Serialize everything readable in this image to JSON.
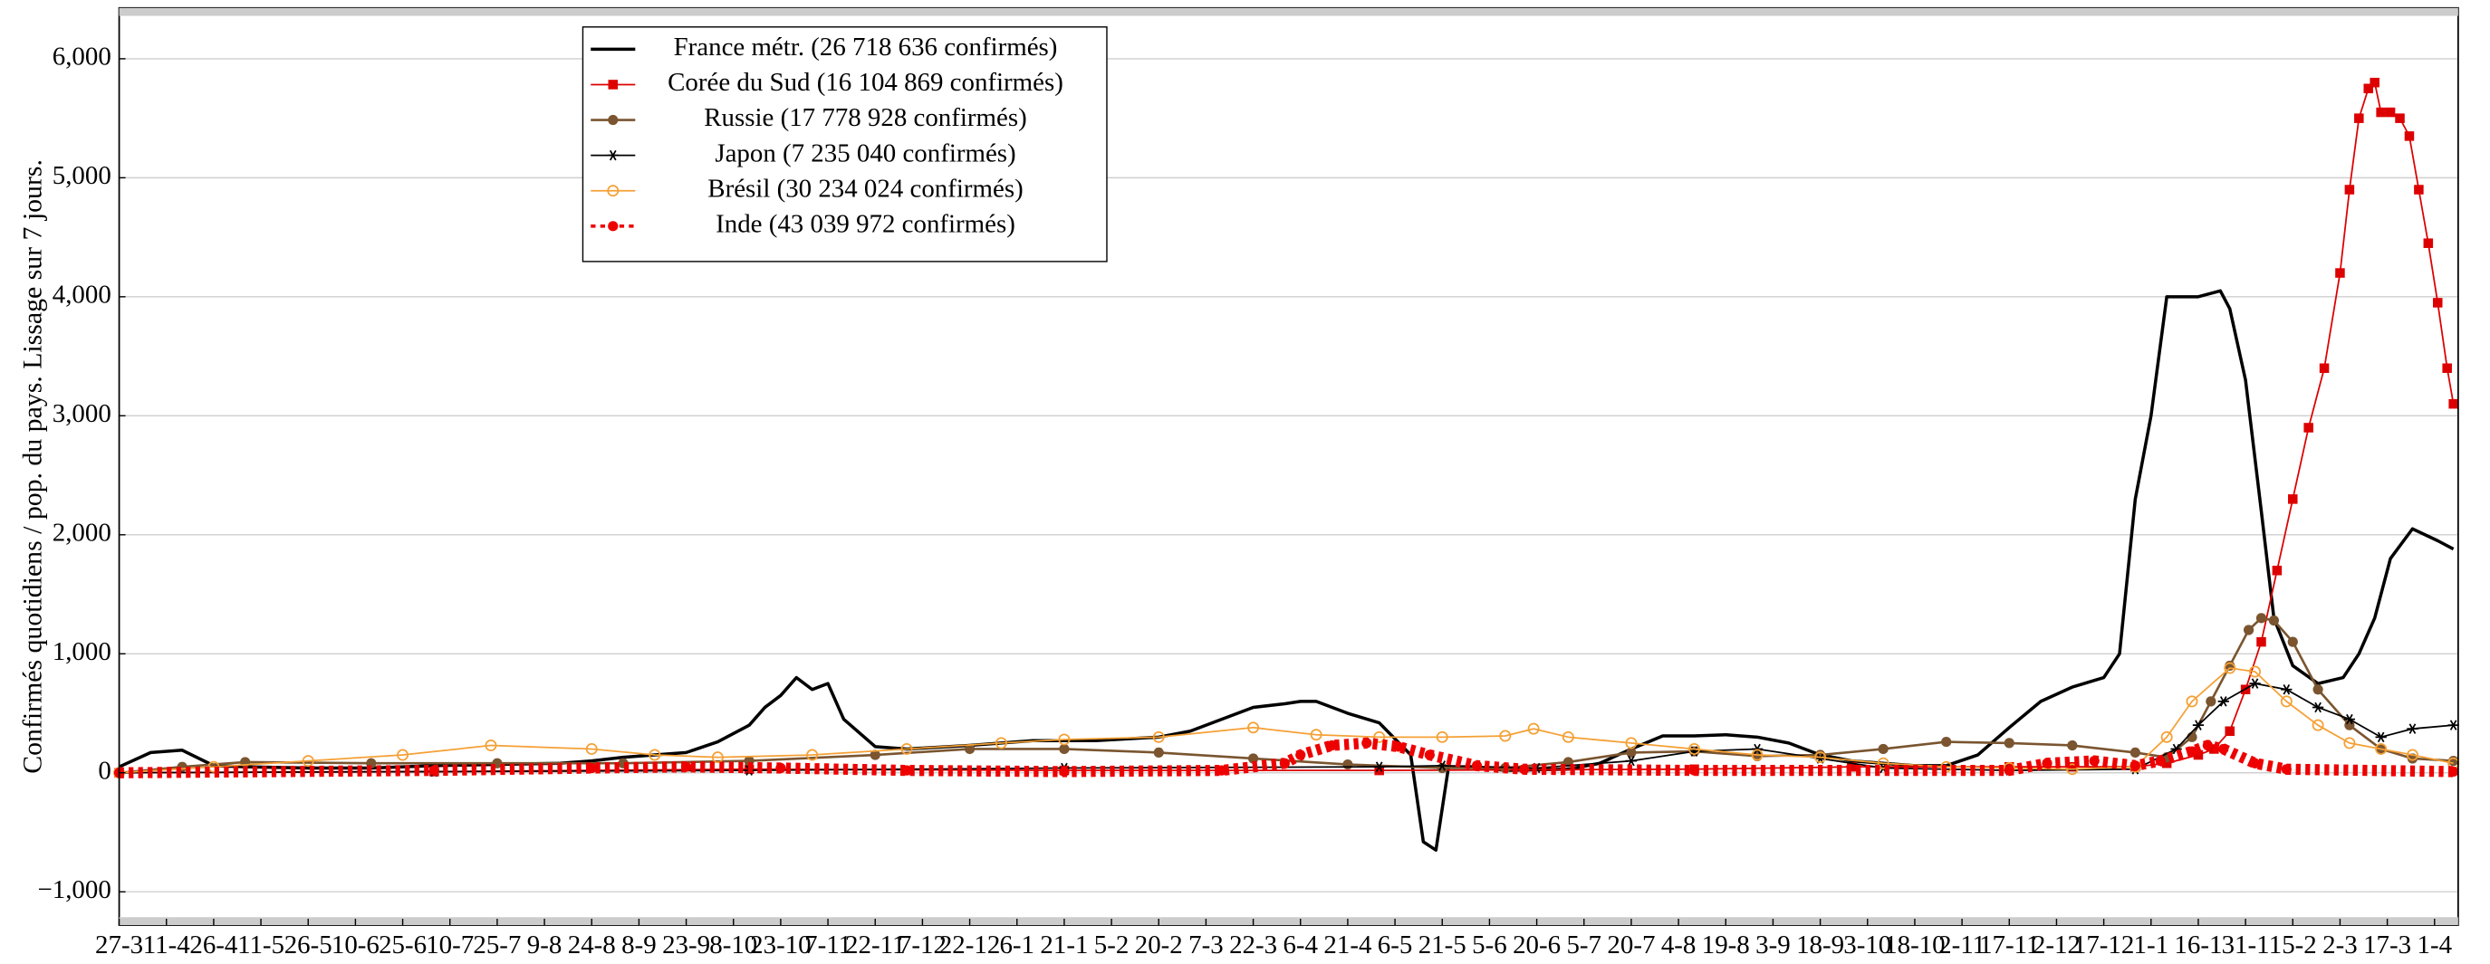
{
  "chart_data": {
    "type": "line",
    "y_label": "Confirmés quotidiens / pop. du pays. Lissage sur 7 jours.",
    "xlim": [
      0,
      742.5
    ],
    "ylim": [
      -1280,
      6427
    ],
    "grid": "y",
    "legend": "upper left",
    "xticks": [
      {
        "value": 0,
        "label": "27-3"
      },
      {
        "value": 15,
        "label": "11-4"
      },
      {
        "value": 30,
        "label": "26-4"
      },
      {
        "value": 45,
        "label": "11-5"
      },
      {
        "value": 60,
        "label": "26-5"
      },
      {
        "value": 75,
        "label": "10-6"
      },
      {
        "value": 90,
        "label": "25-6"
      },
      {
        "value": 105,
        "label": "10-7"
      },
      {
        "value": 120,
        "label": "25-7"
      },
      {
        "value": 135,
        "label": "9-8"
      },
      {
        "value": 150,
        "label": "24-8"
      },
      {
        "value": 165,
        "label": "8-9"
      },
      {
        "value": 180,
        "label": "23-9"
      },
      {
        "value": 195,
        "label": "8-10"
      },
      {
        "value": 210,
        "label": "23-10"
      },
      {
        "value": 225,
        "label": "7-11"
      },
      {
        "value": 240,
        "label": "22-11"
      },
      {
        "value": 255,
        "label": "7-12"
      },
      {
        "value": 270,
        "label": "22-12"
      },
      {
        "value": 285,
        "label": "6-1"
      },
      {
        "value": 300,
        "label": "21-1"
      },
      {
        "value": 315,
        "label": "5-2"
      },
      {
        "value": 330,
        "label": "20-2"
      },
      {
        "value": 345,
        "label": "7-3"
      },
      {
        "value": 360,
        "label": "22-3"
      },
      {
        "value": 375,
        "label": "6-4"
      },
      {
        "value": 390,
        "label": "21-4"
      },
      {
        "value": 405,
        "label": "6-5"
      },
      {
        "value": 420,
        "label": "21-5"
      },
      {
        "value": 435,
        "label": "5-6"
      },
      {
        "value": 450,
        "label": "20-6"
      },
      {
        "value": 465,
        "label": "5-7"
      },
      {
        "value": 480,
        "label": "20-7"
      },
      {
        "value": 495,
        "label": "4-8"
      },
      {
        "value": 510,
        "label": "19-8"
      },
      {
        "value": 525,
        "label": "3-9"
      },
      {
        "value": 540,
        "label": "18-9"
      },
      {
        "value": 555,
        "label": "3-10"
      },
      {
        "value": 570,
        "label": "18-10"
      },
      {
        "value": 585,
        "label": "2-11"
      },
      {
        "value": 600,
        "label": "17-11"
      },
      {
        "value": 615,
        "label": "2-12"
      },
      {
        "value": 630,
        "label": "17-12"
      },
      {
        "value": 645,
        "label": "1-1"
      },
      {
        "value": 660,
        "label": "16-1"
      },
      {
        "value": 675,
        "label": "31-1"
      },
      {
        "value": 690,
        "label": "15-2"
      },
      {
        "value": 705,
        "label": "2-3"
      },
      {
        "value": 720,
        "label": "17-3"
      },
      {
        "value": 735,
        "label": "1-4"
      }
    ],
    "yticks": [
      {
        "value": -1000,
        "label": "−1,000"
      },
      0,
      {
        "value": 1000,
        "label": "1,000"
      },
      {
        "value": 2000,
        "label": "2,000"
      },
      {
        "value": 3000,
        "label": "3,000"
      },
      {
        "value": 4000,
        "label": "4,000"
      },
      {
        "value": 5000,
        "label": "5,000"
      },
      {
        "value": 6000,
        "label": "6,000"
      }
    ],
    "series": [
      {
        "name": "France métr. (26 718 636 confirmés)",
        "color": "#000000",
        "marker": "none",
        "line_width": 2,
        "dash": "none",
        "x": [
          0,
          10,
          20,
          30,
          40,
          60,
          80,
          100,
          120,
          140,
          150,
          160,
          170,
          180,
          190,
          200,
          205,
          210,
          215,
          220,
          225,
          230,
          240,
          250,
          270,
          290,
          310,
          330,
          340,
          350,
          360,
          370,
          375,
          380,
          390,
          400,
          410,
          414,
          418,
          422,
          430,
          440,
          460,
          470,
          480,
          490,
          500,
          510,
          520,
          530,
          540,
          550,
          560,
          570,
          580,
          590,
          600,
          610,
          620,
          630,
          635,
          640,
          645,
          650,
          660,
          667,
          670,
          675,
          680,
          684,
          690,
          698,
          706,
          711,
          716,
          721,
          728,
          736,
          741
        ],
        "values": [
          50,
          170,
          190,
          60,
          50,
          40,
          40,
          60,
          70,
          80,
          100,
          130,
          150,
          170,
          260,
          400,
          550,
          650,
          800,
          700,
          750,
          450,
          220,
          200,
          230,
          270,
          270,
          300,
          350,
          450,
          550,
          580,
          600,
          600,
          500,
          420,
          150,
          -580,
          -650,
          50,
          50,
          20,
          30,
          80,
          200,
          310,
          310,
          320,
          300,
          250,
          150,
          100,
          80,
          60,
          60,
          150,
          380,
          600,
          720,
          800,
          1000,
          2300,
          3000,
          4000,
          4000,
          4050,
          3900,
          3300,
          2200,
          1300,
          900,
          750,
          800,
          1000,
          1300,
          1800,
          2050,
          1950,
          1880
        ]
      },
      {
        "name": "Corée du Sud (16 104 869 confirmés)",
        "color": "#dd0000",
        "marker": "square",
        "line_width": 1,
        "dash": "none",
        "x": [
          0,
          100,
          200,
          300,
          400,
          500,
          550,
          600,
          620,
          640,
          650,
          660,
          665,
          670,
          675,
          680,
          685,
          690,
          695,
          700,
          705,
          708,
          711,
          714,
          716,
          718,
          721,
          724,
          727,
          730,
          733,
          736,
          739,
          741
        ],
        "values": [
          0,
          10,
          30,
          20,
          20,
          30,
          50,
          50,
          50,
          50,
          80,
          150,
          200,
          350,
          700,
          1100,
          1700,
          2300,
          2900,
          3400,
          4200,
          4900,
          5500,
          5750,
          5800,
          5550,
          5550,
          5500,
          5350,
          4900,
          4450,
          3950,
          3400,
          3100
        ]
      },
      {
        "name": "Russie (17 778 928 confirmés)",
        "color": "#7a5530",
        "marker": "circle",
        "line_width": 1.5,
        "dash": "none",
        "x": [
          0,
          20,
          40,
          80,
          120,
          160,
          200,
          240,
          270,
          300,
          330,
          360,
          390,
          420,
          440,
          460,
          480,
          500,
          520,
          540,
          560,
          580,
          600,
          620,
          640,
          650,
          658,
          664,
          670,
          676,
          680,
          684,
          690,
          698,
          708,
          718,
          728,
          741
        ],
        "values": [
          0,
          50,
          90,
          80,
          80,
          80,
          100,
          150,
          200,
          200,
          170,
          120,
          70,
          40,
          40,
          90,
          170,
          180,
          140,
          150,
          200,
          260,
          250,
          230,
          170,
          130,
          300,
          600,
          900,
          1200,
          1300,
          1280,
          1100,
          700,
          400,
          200,
          120,
          100
        ]
      },
      {
        "name": "Japon (7 235 040 confirmés)",
        "color": "#000000",
        "marker": "star",
        "line_width": 1,
        "dash": "none",
        "x": [
          0,
          100,
          200,
          300,
          400,
          420,
          450,
          480,
          500,
          520,
          540,
          560,
          600,
          640,
          653,
          660,
          668,
          678,
          688,
          698,
          708,
          718,
          728,
          741
        ],
        "values": [
          0,
          10,
          20,
          40,
          50,
          60,
          40,
          100,
          180,
          200,
          120,
          40,
          20,
          30,
          200,
          400,
          600,
          750,
          700,
          550,
          450,
          300,
          370,
          400
        ]
      },
      {
        "name": "Brésil (30 234 024 confirmés)",
        "color": "#f5a035",
        "marker": "open-circle",
        "line_width": 1,
        "dash": "none",
        "x": [
          0,
          30,
          60,
          90,
          118,
          150,
          170,
          190,
          220,
          250,
          280,
          300,
          330,
          360,
          380,
          400,
          420,
          440,
          449,
          460,
          480,
          500,
          520,
          540,
          560,
          580,
          600,
          620,
          640,
          650,
          658,
          670,
          678,
          688,
          698,
          708,
          718,
          728,
          741
        ],
        "values": [
          0,
          50,
          100,
          150,
          230,
          200,
          150,
          130,
          150,
          200,
          250,
          280,
          300,
          380,
          320,
          300,
          300,
          310,
          370,
          300,
          250,
          200,
          150,
          130,
          80,
          50,
          40,
          30,
          50,
          300,
          600,
          880,
          850,
          600,
          400,
          250,
          200,
          150,
          80
        ]
      },
      {
        "name": "Inde (43 039 972 confirmés)",
        "color": "#ee0000",
        "marker": "circle",
        "line_width": 7,
        "dash": "dashed",
        "x": [
          0,
          100,
          150,
          180,
          210,
          250,
          300,
          350,
          370,
          375,
          385,
          396,
          406,
          416,
          431,
          446,
          500,
          600,
          612,
          627,
          640,
          648,
          658,
          663,
          668,
          678,
          688,
          741
        ],
        "values": [
          0,
          20,
          40,
          50,
          40,
          20,
          10,
          20,
          80,
          150,
          230,
          250,
          220,
          150,
          60,
          30,
          20,
          20,
          80,
          100,
          60,
          100,
          180,
          230,
          200,
          80,
          30,
          10
        ]
      }
    ]
  }
}
